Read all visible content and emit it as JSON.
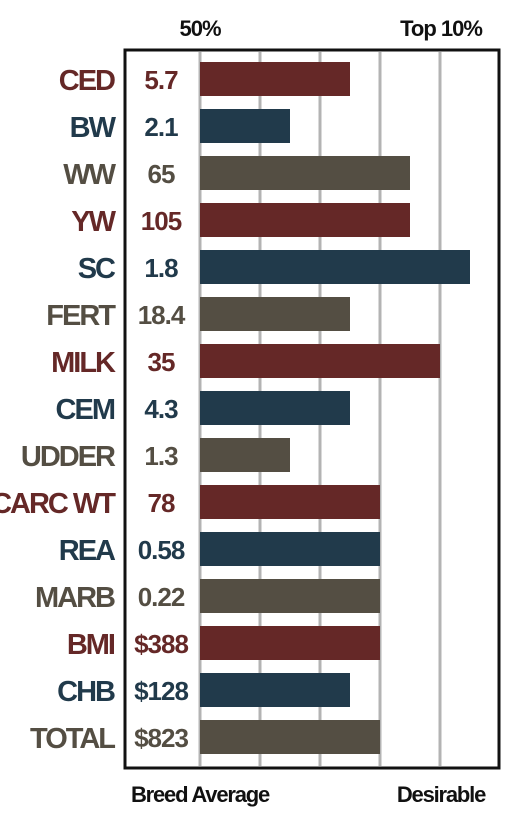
{
  "header": {
    "left": "50%",
    "right": "Top 10%"
  },
  "footer": {
    "left": "Breed Average",
    "right": "Desirable"
  },
  "colors": {
    "red": "#652827",
    "blue": "#213a4b",
    "taupe": "#544e43",
    "grid": "#b3b3b3",
    "frame": "#111111"
  },
  "chart_data": {
    "type": "bar",
    "orientation": "horizontal",
    "categories": [
      "CED",
      "BW",
      "WW",
      "YW",
      "SC",
      "FERT",
      "MILK",
      "CEM",
      "UDDER",
      "CARC WT",
      "REA",
      "MARB",
      "BMI",
      "CHB",
      "TOTAL"
    ],
    "labels": [
      "5.7",
      "2.1",
      "65",
      "105",
      "1.8",
      "18.4",
      "35",
      "4.3",
      "1.3",
      "78",
      "0.58",
      "0.22",
      "$388",
      "$128",
      "$823"
    ],
    "values": [
      2.5,
      1.5,
      3.5,
      3.5,
      4.5,
      2.5,
      4.0,
      2.5,
      1.5,
      3.0,
      3.0,
      3.0,
      3.0,
      2.5,
      3.0
    ],
    "color_keys": [
      "red",
      "blue",
      "taupe",
      "red",
      "blue",
      "taupe",
      "red",
      "blue",
      "taupe",
      "red",
      "blue",
      "taupe",
      "red",
      "blue",
      "taupe"
    ],
    "xlim": [
      0,
      5
    ],
    "grid": true
  }
}
